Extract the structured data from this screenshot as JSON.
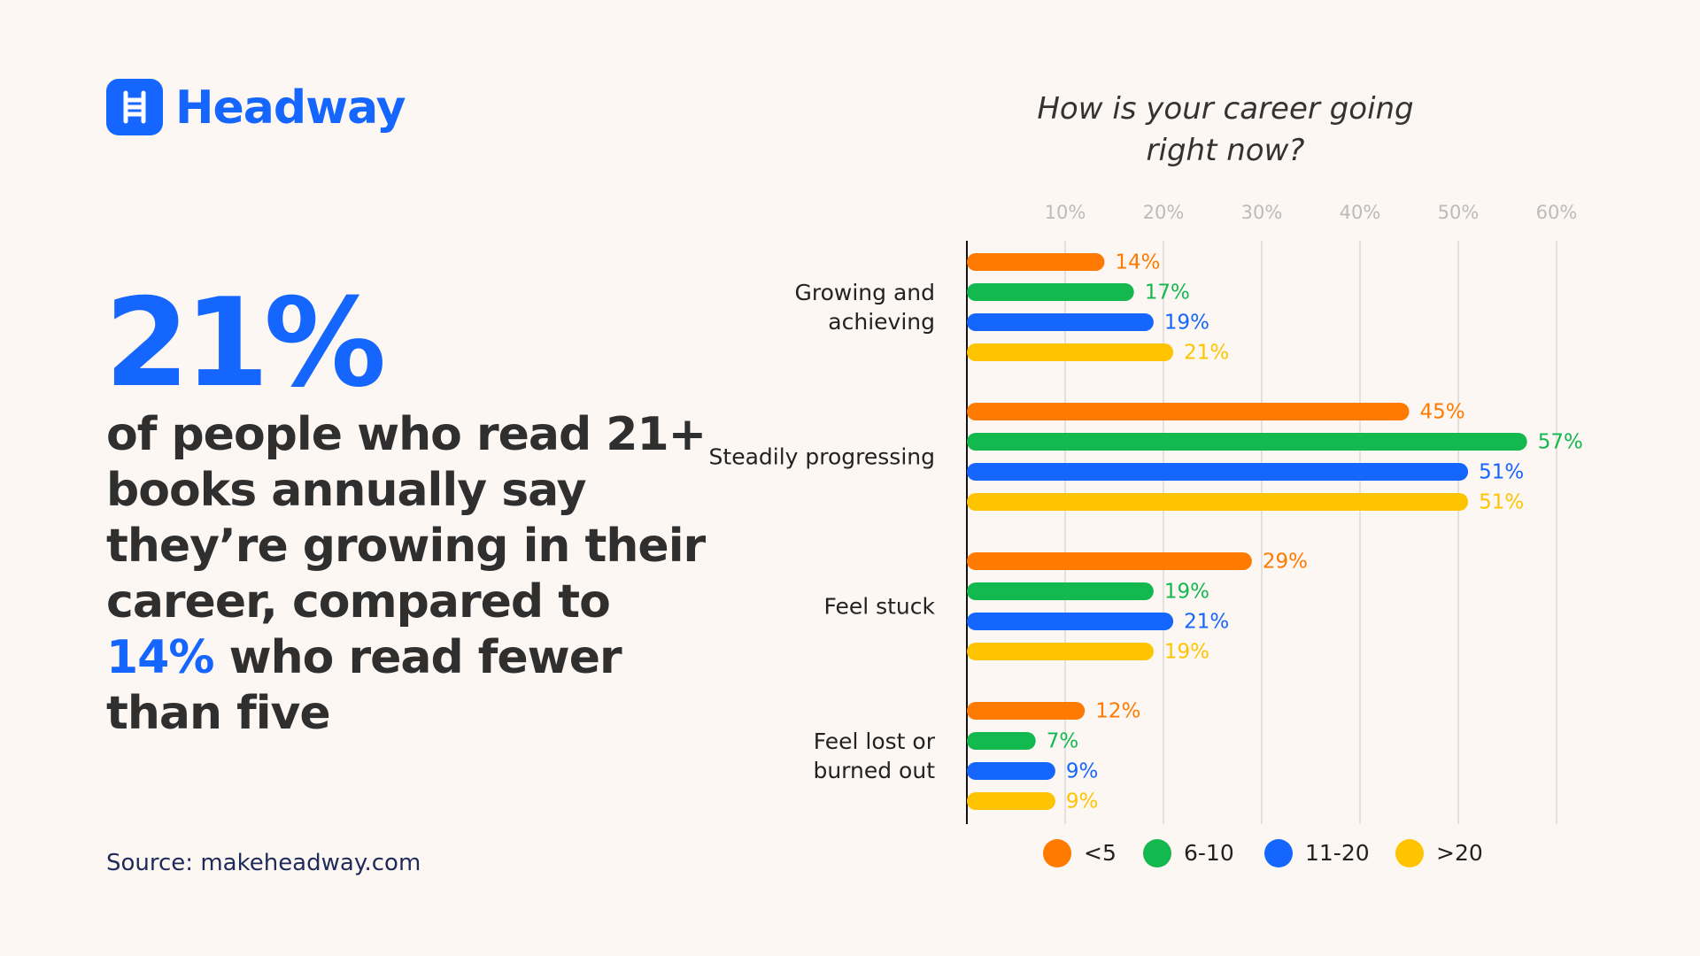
{
  "brand": "Headway",
  "headline": "21%",
  "description": {
    "before": "of people who read 21+ books annually say they’re growing in their career, compared to",
    "highlight": "14%",
    "after": "who read fewer than five"
  },
  "source": "Source: makeheadway.com",
  "chart_data": {
    "type": "hbar",
    "title": "How is your career going right now?",
    "categories": [
      "Growing and achieving",
      "Steadily progressing",
      "Feel stuck",
      "Feel lost or burned out"
    ],
    "series": [
      {
        "name": "<5",
        "color": "#ff7a00",
        "values": [
          14,
          45,
          29,
          12
        ],
        "value_labels": [
          "14%",
          "45%",
          "29%",
          "12%"
        ]
      },
      {
        "name": "6-10",
        "color": "#13b84f",
        "values": [
          17,
          57,
          19,
          7
        ],
        "value_labels": [
          "17%",
          "57%",
          "19%",
          "7%"
        ]
      },
      {
        "name": "11-20",
        "color": "#1466ff",
        "values": [
          19,
          51,
          21,
          9
        ],
        "value_labels": [
          "19%",
          "51%",
          "21%",
          "9%"
        ]
      },
      {
        "name": ">20",
        "color": "#ffc400",
        "values": [
          21,
          51,
          19,
          9
        ],
        "value_labels": [
          "21%",
          "51%",
          "19%",
          "9%"
        ]
      }
    ],
    "xlim": [
      0,
      60
    ],
    "xticks": [
      {
        "value": 10,
        "label": "10%"
      },
      {
        "value": 20,
        "label": "20%"
      },
      {
        "value": 30,
        "label": "30%"
      },
      {
        "value": 40,
        "label": "40%"
      },
      {
        "value": 50,
        "label": "50%"
      },
      {
        "value": 60,
        "label": "60%"
      }
    ],
    "grid": true,
    "legend": "bottom"
  }
}
